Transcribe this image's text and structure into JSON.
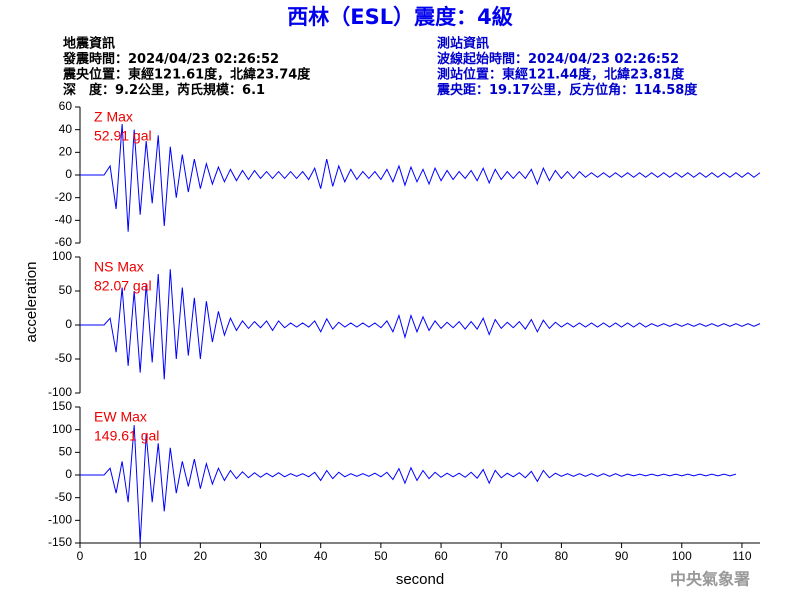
{
  "header": {
    "title": "西林（ESL）震度：4級",
    "left": [
      "地震資訊",
      "發震時間：2024/04/23 02:26:52",
      "震央位置：東經121.61度，北緯23.74度",
      "深　度：9.2公里，芮氏規模：6.1"
    ],
    "right": [
      "測站資訊",
      "波線起始時間：2024/04/23 02:26:52",
      "測站位置：東經121.44度，北緯23.81度",
      "震央距：19.17公里，反方位角：114.58度"
    ]
  },
  "watermark": "中央氣象署",
  "chart_data": {
    "type": "line",
    "xlabel": "second",
    "ylabel": "acceleration",
    "xlim": [
      0,
      113
    ],
    "xticks": [
      0,
      10,
      20,
      30,
      40,
      50,
      60,
      70,
      80,
      90,
      100,
      110
    ],
    "x": [
      0,
      1,
      2,
      3,
      4,
      5,
      6,
      7,
      8,
      9,
      10,
      11,
      12,
      13,
      14,
      15,
      16,
      17,
      18,
      19,
      20,
      21,
      22,
      23,
      24,
      25,
      26,
      27,
      28,
      29,
      30,
      31,
      32,
      33,
      34,
      35,
      36,
      37,
      38,
      39,
      40,
      41,
      42,
      43,
      44,
      45,
      46,
      47,
      48,
      49,
      50,
      51,
      52,
      53,
      54,
      55,
      56,
      57,
      58,
      59,
      60,
      61,
      62,
      63,
      64,
      65,
      66,
      67,
      68,
      69,
      70,
      71,
      72,
      73,
      74,
      75,
      76,
      77,
      78,
      79,
      80,
      81,
      82,
      83,
      84,
      85,
      86,
      87,
      88,
      89,
      90,
      91,
      92,
      93,
      94,
      95,
      96,
      97,
      98,
      99,
      100,
      101,
      102,
      103,
      104,
      105,
      106,
      107,
      108,
      109,
      110,
      111,
      112,
      113
    ],
    "panels": [
      {
        "name": "Z Max",
        "max_label": "52.91 gal",
        "color": "#0000ff",
        "ylim": [
          -60,
          60
        ],
        "yticks": [
          -60,
          -40,
          -20,
          0,
          20,
          40,
          60
        ],
        "values": [
          0,
          0,
          0,
          0,
          0,
          8,
          -30,
          45,
          -50,
          40,
          -35,
          30,
          -25,
          35,
          -45,
          25,
          -20,
          18,
          -15,
          14,
          -12,
          10,
          -8,
          7,
          -6,
          5,
          -5,
          4,
          -4,
          4,
          -3,
          3,
          -3,
          3,
          -3,
          3,
          -3,
          3,
          -4,
          6,
          -12,
          14,
          -10,
          8,
          -6,
          5,
          -4,
          3,
          -3,
          3,
          -4,
          5,
          -6,
          8,
          -9,
          7,
          -6,
          5,
          -8,
          6,
          -5,
          4,
          -4,
          3,
          -3,
          4,
          -5,
          6,
          -7,
          5,
          -4,
          3,
          -3,
          3,
          -3,
          5,
          -8,
          6,
          -5,
          4,
          -3,
          3,
          -3,
          3,
          -2,
          2,
          -2,
          2,
          -2,
          2,
          -2,
          2,
          -2,
          2,
          -2,
          2,
          -2,
          2,
          -2,
          2,
          -2,
          2,
          -2,
          2,
          -2,
          2,
          -2,
          2,
          -2,
          2,
          -2,
          2,
          -2,
          2
        ]
      },
      {
        "name": "NS Max",
        "max_label": "82.07 gal",
        "color": "#0000ff",
        "ylim": [
          -100,
          100
        ],
        "yticks": [
          -100,
          -50,
          0,
          50,
          100
        ],
        "values": [
          0,
          0,
          0,
          0,
          0,
          10,
          -40,
          55,
          -60,
          50,
          -70,
          60,
          -55,
          75,
          -80,
          82,
          -50,
          55,
          -45,
          40,
          -50,
          35,
          -25,
          20,
          -15,
          10,
          -8,
          6,
          -5,
          5,
          -4,
          6,
          -8,
          6,
          -4,
          3,
          -3,
          3,
          -3,
          6,
          -10,
          9,
          -6,
          4,
          -3,
          3,
          -3,
          3,
          -3,
          3,
          -4,
          6,
          -10,
          14,
          -18,
          14,
          -10,
          12,
          -8,
          6,
          -5,
          4,
          -4,
          5,
          -6,
          5,
          -6,
          10,
          -14,
          8,
          -5,
          4,
          -4,
          5,
          -6,
          8,
          -10,
          7,
          -5,
          4,
          -3,
          3,
          -3,
          3,
          -3,
          3,
          -3,
          3,
          -3,
          3,
          -3,
          3,
          -3,
          3,
          -3,
          2,
          -2,
          2,
          -2,
          2,
          -2,
          2,
          -2,
          2,
          -2,
          2,
          -2,
          2,
          -2,
          2,
          -2,
          2,
          -2,
          2
        ]
      },
      {
        "name": "EW Max",
        "max_label": "149.61 gal",
        "color": "#0000ff",
        "ylim": [
          -150,
          150
        ],
        "yticks": [
          -150,
          -100,
          -50,
          0,
          50,
          100,
          150
        ],
        "values": [
          0,
          0,
          0,
          0,
          0,
          15,
          -40,
          30,
          -60,
          110,
          -150,
          90,
          -60,
          70,
          -80,
          60,
          -40,
          30,
          -25,
          35,
          -30,
          25,
          -20,
          15,
          -12,
          10,
          -8,
          7,
          -6,
          5,
          -5,
          4,
          -4,
          5,
          -4,
          3,
          -3,
          3,
          -4,
          6,
          -12,
          10,
          -8,
          6,
          -4,
          3,
          -3,
          3,
          -3,
          4,
          -4,
          6,
          -10,
          14,
          -18,
          16,
          -12,
          10,
          -8,
          6,
          -5,
          4,
          -4,
          4,
          -5,
          6,
          -7,
          12,
          -18,
          10,
          -6,
          4,
          -4,
          5,
          -6,
          8,
          -14,
          10,
          -6,
          4,
          -3,
          3,
          -3,
          3,
          -3,
          3,
          -3,
          3,
          -3,
          3,
          -3,
          2,
          -2,
          2,
          -2,
          2,
          -2,
          2,
          -2,
          2,
          -2,
          2,
          -2,
          2,
          -2,
          2,
          -2,
          2,
          -2,
          2
        ]
      }
    ]
  }
}
